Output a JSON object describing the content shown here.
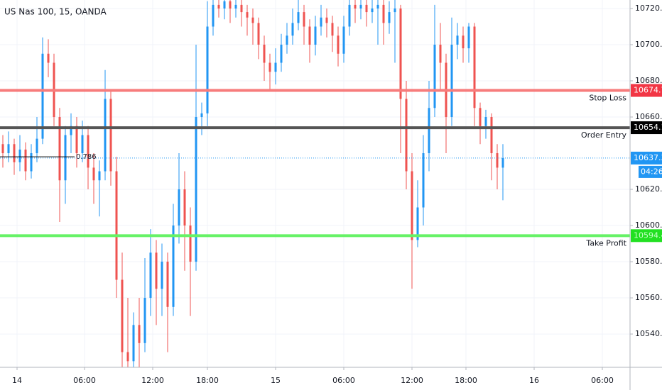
{
  "chart_data": {
    "type": "candlestick",
    "title": "US Nas 100, 15, OANDA",
    "up_color": "#2196f3",
    "down_color": "#ef5350",
    "xlim": [
      -1,
      220.75
    ],
    "ylim": [
      10521.6,
      10724.7
    ],
    "xticks": [
      {
        "value": 5,
        "label": "14"
      },
      {
        "value": 28.75,
        "label": "06:00"
      },
      {
        "value": 52.75,
        "label": "12:00"
      },
      {
        "value": 72,
        "label": "18:00"
      },
      {
        "value": 96,
        "label": "15"
      },
      {
        "value": 120,
        "label": "06:00"
      },
      {
        "value": 144,
        "label": "12:00"
      },
      {
        "value": 163,
        "label": "18:00"
      },
      {
        "value": 187,
        "label": "16"
      },
      {
        "value": 211,
        "label": "06:00"
      }
    ],
    "yticks": [
      {
        "value": 10540,
        "label": "10540.0"
      },
      {
        "value": 10560,
        "label": "10560.0"
      },
      {
        "value": 10580,
        "label": "10580.0"
      },
      {
        "value": 10600,
        "label": "10600.0"
      },
      {
        "value": 10620,
        "label": "10620.0"
      },
      {
        "value": 10660,
        "label": "10660.0"
      },
      {
        "value": 10680,
        "label": "10680.0"
      },
      {
        "value": 10700,
        "label": "10700.0"
      },
      {
        "value": 10720,
        "label": "10720.0"
      }
    ],
    "grid": true,
    "x": [
      0,
      2,
      4,
      6,
      8,
      10,
      12,
      14,
      16,
      18,
      20,
      22,
      24,
      26,
      28,
      30,
      32,
      34,
      36,
      38,
      40,
      42,
      44,
      46,
      48,
      50,
      52,
      54,
      56,
      58,
      60,
      62,
      64,
      66,
      68,
      70,
      72,
      74,
      76,
      78,
      80,
      82,
      84,
      86,
      88,
      90,
      92,
      94,
      96,
      98,
      100,
      102,
      104,
      106,
      108,
      110,
      112,
      114,
      116,
      118,
      120,
      122,
      124,
      126,
      128,
      130,
      132,
      134,
      136,
      138,
      140,
      142,
      144,
      146,
      148,
      150,
      152,
      154,
      156,
      158,
      160,
      162,
      164,
      166,
      168,
      170,
      172,
      174,
      176
    ],
    "open": [
      10645,
      10640,
      10645,
      10635,
      10642,
      10630,
      10640,
      10648,
      10695,
      10690,
      10660,
      10625,
      10650,
      10655,
      10640,
      10650,
      10632,
      10625,
      10630,
      10670,
      10630,
      10570,
      10530,
      10525,
      10545,
      10535,
      10560,
      10585,
      10565,
      10580,
      10555,
      10600,
      10620,
      10600,
      10580,
      10660,
      10662,
      10710,
      10722,
      10720,
      10724,
      10720,
      10722,
      10718,
      10715,
      10712,
      10700,
      10690,
      10685,
      10690,
      10700,
      10705,
      10712,
      10718,
      10710,
      10700,
      10710,
      10715,
      10712,
      10705,
      10695,
      10710,
      10722,
      10720,
      10722,
      10718,
      10720,
      10722,
      10712,
      10718,
      10720,
      10670,
      10630,
      10592,
      10610,
      10640,
      10665,
      10700,
      10690,
      10660,
      10700,
      10705,
      10698,
      10710,
      10665,
      10655,
      10660,
      10640,
      10632
    ],
    "high": [
      10650,
      10652,
      10648,
      10650,
      10646,
      10645,
      10660,
      10704,
      10703,
      10695,
      10665,
      10655,
      10662,
      10660,
      10658,
      10655,
      10640,
      10636,
      10686,
      10675,
      10638,
      10585,
      10560,
      10552,
      10560,
      10582,
      10598,
      10592,
      10590,
      10585,
      10612,
      10640,
      10630,
      10610,
      10700,
      10668,
      10724,
      10725,
      10725,
      10725,
      10725,
      10725,
      10725,
      10722,
      10720,
      10715,
      10705,
      10695,
      10698,
      10706,
      10712,
      10720,
      10725,
      10722,
      10714,
      10716,
      10722,
      10720,
      10716,
      10710,
      10716,
      10725,
      10725,
      10725,
      10725,
      10725,
      10725,
      10725,
      10724,
      10725,
      10722,
      10680,
      10640,
      10625,
      10650,
      10680,
      10722,
      10712,
      10695,
      10715,
      10712,
      10710,
      10712,
      10712,
      10668,
      10664,
      10662,
      10645,
      10645
    ],
    "low": [
      10632,
      10635,
      10628,
      10630,
      10625,
      10626,
      10635,
      10645,
      10682,
      10655,
      10602,
      10612,
      10640,
      10632,
      10635,
      10620,
      10612,
      10605,
      10625,
      10622,
      10560,
      10518,
      10518,
      10518,
      10520,
      10530,
      10550,
      10545,
      10550,
      10530,
      10550,
      10590,
      10575,
      10550,
      10575,
      10650,
      10655,
      10705,
      10715,
      10714,
      10712,
      10715,
      10710,
      10705,
      10700,
      10692,
      10680,
      10675,
      10678,
      10685,
      10695,
      10700,
      10708,
      10700,
      10690,
      10694,
      10705,
      10704,
      10696,
      10688,
      10690,
      10705,
      10712,
      10714,
      10710,
      10712,
      10700,
      10700,
      10706,
      10690,
      10640,
      10620,
      10565,
      10588,
      10600,
      10630,
      10660,
      10675,
      10640,
      10655,
      10692,
      10690,
      10690,
      10655,
      10645,
      10648,
      10625,
      10620,
      10614
    ],
    "close": [
      10640,
      10645,
      10635,
      10642,
      10630,
      10640,
      10648,
      10695,
      10690,
      10660,
      10625,
      10650,
      10655,
      10640,
      10650,
      10632,
      10625,
      10630,
      10670,
      10630,
      10570,
      10530,
      10525,
      10545,
      10535,
      10560,
      10585,
      10565,
      10580,
      10555,
      10600,
      10620,
      10600,
      10580,
      10660,
      10662,
      10710,
      10722,
      10720,
      10724,
      10720,
      10722,
      10718,
      10715,
      10712,
      10700,
      10690,
      10685,
      10690,
      10700,
      10705,
      10712,
      10718,
      10710,
      10700,
      10710,
      10715,
      10712,
      10705,
      10695,
      10710,
      10722,
      10720,
      10722,
      10718,
      10720,
      10722,
      10712,
      10718,
      10720,
      10670,
      10630,
      10592,
      10610,
      10640,
      10665,
      10700,
      10690,
      10660,
      10700,
      10705,
      10698,
      10710,
      10665,
      10655,
      10660,
      10640,
      10632,
      10637.3
    ],
    "levels": [
      {
        "name": "Stop Loss",
        "value": 10674.7,
        "color": "#f77c7c",
        "label_color": "#f23645",
        "text_color": "#ffffff"
      },
      {
        "name": "Order Entry",
        "value": 10654.1,
        "color": "#555555",
        "label_color": "#000000",
        "text_color": "#ffffff"
      },
      {
        "name": "Take Profit",
        "value": 10594.4,
        "color": "#66f266",
        "label_color": "#22e022",
        "text_color": "#c8ffc8"
      }
    ],
    "current_price": {
      "value": 10637.3,
      "countdown": "04:26",
      "color": "#2196f3"
    },
    "fib": {
      "name": "0.786",
      "value": 10638,
      "color": "#000000"
    }
  }
}
